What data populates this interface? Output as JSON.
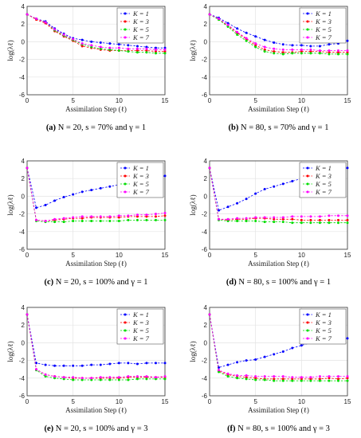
{
  "chart_data": [
    {
      "type": "line",
      "caption_tag": "(a)",
      "caption_text": "N = 20, s = 70% and γ = 1",
      "xlabel": "Assimilation Step (ℓ)",
      "ylabel": "log(λℓ)",
      "xlim": [
        0,
        15
      ],
      "ylim": [
        -6,
        4
      ],
      "xticks": [
        0,
        5,
        10,
        15
      ],
      "yticks": [
        -6,
        -4,
        -2,
        0,
        2,
        4
      ],
      "grid": true,
      "legend_position": "top-right",
      "x": [
        0,
        1,
        2,
        3,
        4,
        5,
        6,
        7,
        8,
        9,
        10,
        11,
        12,
        13,
        14,
        15
      ],
      "series": [
        {
          "name": "K = 1",
          "color": "#0000ff",
          "values": [
            3.1,
            2.6,
            2.3,
            1.5,
            0.9,
            0.4,
            0.2,
            0.0,
            -0.1,
            -0.2,
            -0.3,
            -0.4,
            -0.5,
            -0.6,
            -0.7,
            -0.7
          ]
        },
        {
          "name": "K = 3",
          "color": "#ff0000",
          "values": [
            3.1,
            2.5,
            2.1,
            1.2,
            0.6,
            0.1,
            -0.5,
            -0.7,
            -0.9,
            -1.0,
            -1.0,
            -1.0,
            -1.0,
            -1.0,
            -1.1,
            -1.1
          ]
        },
        {
          "name": "K = 5",
          "color": "#00dd00",
          "values": [
            3.1,
            2.6,
            2.2,
            1.3,
            0.7,
            0.2,
            -0.3,
            -0.6,
            -0.8,
            -0.9,
            -1.0,
            -1.1,
            -1.2,
            -1.2,
            -1.3,
            -1.3
          ]
        },
        {
          "name": "K = 7",
          "color": "#ff00ff",
          "values": [
            3.1,
            2.6,
            2.2,
            1.4,
            0.8,
            0.3,
            -0.2,
            -0.4,
            -0.6,
            -0.7,
            -0.7,
            -0.8,
            -0.8,
            -0.8,
            -0.9,
            -0.9
          ]
        }
      ]
    },
    {
      "type": "line",
      "caption_tag": "(b)",
      "caption_text": "N = 80, s = 70% and γ = 1",
      "xlabel": "Assimilation Step (ℓ)",
      "ylabel": "log(λℓ)",
      "xlim": [
        0,
        15
      ],
      "ylim": [
        -6,
        4
      ],
      "xticks": [
        0,
        5,
        10,
        15
      ],
      "yticks": [
        -6,
        -4,
        -2,
        0,
        2,
        4
      ],
      "grid": true,
      "legend_position": "top-right",
      "x": [
        0,
        1,
        2,
        3,
        4,
        5,
        6,
        7,
        8,
        9,
        10,
        11,
        12,
        13,
        14,
        15
      ],
      "series": [
        {
          "name": "K = 1",
          "color": "#0000ff",
          "values": [
            3.1,
            2.7,
            2.1,
            1.5,
            1.0,
            0.6,
            0.2,
            -0.1,
            -0.3,
            -0.4,
            -0.4,
            -0.5,
            -0.5,
            -0.3,
            -0.2,
            0.1
          ]
        },
        {
          "name": "K = 3",
          "color": "#ff0000",
          "values": [
            3.1,
            2.5,
            1.8,
            1.0,
            0.3,
            -0.4,
            -0.9,
            -1.1,
            -1.2,
            -1.2,
            -1.1,
            -1.1,
            -1.1,
            -1.2,
            -1.2,
            -1.2
          ]
        },
        {
          "name": "K = 5",
          "color": "#00dd00",
          "values": [
            3.1,
            2.5,
            1.7,
            0.8,
            0.1,
            -0.6,
            -1.1,
            -1.3,
            -1.4,
            -1.3,
            -1.3,
            -1.3,
            -1.3,
            -1.4,
            -1.4,
            -1.4
          ]
        },
        {
          "name": "K = 7",
          "color": "#ff00ff",
          "values": [
            3.1,
            2.6,
            1.9,
            1.1,
            0.4,
            -0.2,
            -0.6,
            -0.8,
            -0.9,
            -0.9,
            -0.9,
            -0.9,
            -1.0,
            -1.0,
            -1.0,
            -1.0
          ]
        }
      ]
    },
    {
      "type": "line",
      "caption_tag": "(c)",
      "caption_text": "N = 20, s = 100% and γ = 1",
      "xlabel": "Assimilation Step (ℓ)",
      "ylabel": "log(λℓ)",
      "xlim": [
        0,
        15
      ],
      "ylim": [
        -6,
        4
      ],
      "xticks": [
        0,
        5,
        10,
        15
      ],
      "yticks": [
        -6,
        -4,
        -2,
        0,
        2,
        4
      ],
      "grid": true,
      "legend_position": "top-right",
      "x": [
        0,
        1,
        2,
        3,
        4,
        5,
        6,
        7,
        8,
        9,
        10,
        11,
        12,
        13,
        14,
        15
      ],
      "series": [
        {
          "name": "K = 1",
          "color": "#0000ff",
          "values": [
            3.2,
            -1.3,
            -1.0,
            -0.5,
            -0.1,
            0.2,
            0.5,
            0.7,
            0.9,
            1.1,
            1.3,
            1.5,
            1.7,
            1.9,
            2.1,
            2.3
          ]
        },
        {
          "name": "K = 3",
          "color": "#ff0000",
          "values": [
            3.2,
            -2.7,
            -2.8,
            -2.7,
            -2.6,
            -2.5,
            -2.5,
            -2.4,
            -2.4,
            -2.4,
            -2.4,
            -2.3,
            -2.3,
            -2.3,
            -2.3,
            -2.2
          ]
        },
        {
          "name": "K = 5",
          "color": "#00dd00",
          "values": [
            3.2,
            -2.8,
            -2.9,
            -2.9,
            -2.9,
            -2.8,
            -2.8,
            -2.8,
            -2.8,
            -2.8,
            -2.8,
            -2.7,
            -2.7,
            -2.7,
            -2.7,
            -2.7
          ]
        },
        {
          "name": "K = 7",
          "color": "#ff00ff",
          "values": [
            3.2,
            -2.7,
            -2.8,
            -2.6,
            -2.5,
            -2.4,
            -2.3,
            -2.3,
            -2.3,
            -2.3,
            -2.2,
            -2.2,
            -2.1,
            -2.1,
            -2.0,
            -1.9
          ]
        }
      ]
    },
    {
      "type": "line",
      "caption_tag": "(d)",
      "caption_text": "N = 80, s = 100% and γ = 1",
      "xlabel": "Assimilation Step (ℓ)",
      "ylabel": "log(λℓ)",
      "xlim": [
        0,
        15
      ],
      "ylim": [
        -6,
        4
      ],
      "xticks": [
        0,
        5,
        10,
        15
      ],
      "yticks": [
        -6,
        -4,
        -2,
        0,
        2,
        4
      ],
      "grid": true,
      "legend_position": "top-right",
      "x": [
        0,
        1,
        2,
        3,
        4,
        5,
        6,
        7,
        8,
        9,
        10,
        11,
        12,
        13,
        14,
        15
      ],
      "series": [
        {
          "name": "K = 1",
          "color": "#0000ff",
          "values": [
            3.2,
            -1.6,
            -1.2,
            -0.8,
            -0.3,
            0.3,
            0.8,
            1.1,
            1.4,
            1.7,
            2.0,
            2.3,
            2.5,
            2.8,
            3.0,
            3.2
          ]
        },
        {
          "name": "K = 3",
          "color": "#ff0000",
          "values": [
            3.2,
            -2.6,
            -2.7,
            -2.6,
            -2.6,
            -2.5,
            -2.5,
            -2.6,
            -2.6,
            -2.6,
            -2.7,
            -2.7,
            -2.7,
            -2.7,
            -2.7,
            -2.7
          ]
        },
        {
          "name": "K = 5",
          "color": "#00dd00",
          "values": [
            3.2,
            -2.7,
            -2.8,
            -2.8,
            -2.8,
            -2.8,
            -2.9,
            -2.9,
            -2.9,
            -3.0,
            -3.0,
            -3.0,
            -3.0,
            -3.0,
            -3.0,
            -3.0
          ]
        },
        {
          "name": "K = 7",
          "color": "#ff00ff",
          "values": [
            3.2,
            -2.6,
            -2.6,
            -2.5,
            -2.5,
            -2.4,
            -2.4,
            -2.4,
            -2.4,
            -2.3,
            -2.3,
            -2.3,
            -2.3,
            -2.2,
            -2.2,
            -2.2
          ]
        }
      ]
    },
    {
      "type": "line",
      "caption_tag": "(e)",
      "caption_text": "N = 20, s = 100% and γ = 3",
      "xlabel": "Assimilation Step (ℓ)",
      "ylabel": "log(λℓ)",
      "xlim": [
        0,
        15
      ],
      "ylim": [
        -6,
        4
      ],
      "xticks": [
        0,
        5,
        10,
        15
      ],
      "yticks": [
        -6,
        -4,
        -2,
        0,
        2,
        4
      ],
      "grid": true,
      "legend_position": "top-right",
      "x": [
        0,
        1,
        2,
        3,
        4,
        5,
        6,
        7,
        8,
        9,
        10,
        11,
        12,
        13,
        14,
        15
      ],
      "series": [
        {
          "name": "K = 1",
          "color": "#0000ff",
          "values": [
            3.2,
            -2.3,
            -2.5,
            -2.6,
            -2.6,
            -2.6,
            -2.6,
            -2.5,
            -2.5,
            -2.4,
            -2.3,
            -2.3,
            -2.4,
            -2.3,
            -2.3,
            -2.3
          ]
        },
        {
          "name": "K = 3",
          "color": "#ff0000",
          "values": [
            3.2,
            -3.0,
            -3.6,
            -3.8,
            -3.9,
            -4.0,
            -4.0,
            -4.0,
            -4.0,
            -4.0,
            -4.0,
            -3.9,
            -3.9,
            -3.9,
            -3.9,
            -3.9
          ]
        },
        {
          "name": "K = 5",
          "color": "#00dd00",
          "values": [
            3.2,
            -3.1,
            -3.8,
            -4.0,
            -4.1,
            -4.2,
            -4.2,
            -4.2,
            -4.2,
            -4.2,
            -4.2,
            -4.2,
            -4.1,
            -4.1,
            -4.1,
            -4.1
          ]
        },
        {
          "name": "K = 7",
          "color": "#ff00ff",
          "values": [
            3.2,
            -3.0,
            -3.6,
            -3.8,
            -3.9,
            -3.9,
            -4.0,
            -4.0,
            -3.9,
            -3.9,
            -3.9,
            -3.8,
            -3.8,
            -3.8,
            -3.9,
            -3.8
          ]
        }
      ]
    },
    {
      "type": "line",
      "caption_tag": "(f)",
      "caption_text": "N = 80, s = 100% and γ = 3",
      "xlabel": "Assimilation Step (ℓ)",
      "ylabel": "log(λℓ)",
      "xlim": [
        0,
        15
      ],
      "ylim": [
        -6,
        4
      ],
      "xticks": [
        0,
        5,
        10,
        15
      ],
      "yticks": [
        -6,
        -4,
        -2,
        0,
        2,
        4
      ],
      "grid": true,
      "legend_position": "top-right",
      "x": [
        0,
        1,
        2,
        3,
        4,
        5,
        6,
        7,
        8,
        9,
        10,
        11,
        12,
        13,
        14,
        15
      ],
      "series": [
        {
          "name": "K = 1",
          "color": "#0000ff",
          "values": [
            3.2,
            -2.8,
            -2.5,
            -2.2,
            -2.0,
            -1.9,
            -1.6,
            -1.3,
            -1.0,
            -0.6,
            -0.3,
            0.0,
            0.2,
            0.3,
            0.4,
            0.5
          ]
        },
        {
          "name": "K = 3",
          "color": "#ff0000",
          "values": [
            3.2,
            -3.2,
            -3.6,
            -3.8,
            -3.9,
            -4.0,
            -4.1,
            -4.1,
            -4.1,
            -4.1,
            -4.1,
            -4.1,
            -4.1,
            -4.0,
            -4.1,
            -4.0
          ]
        },
        {
          "name": "K = 5",
          "color": "#00dd00",
          "values": [
            3.2,
            -3.3,
            -3.8,
            -4.0,
            -4.1,
            -4.2,
            -4.2,
            -4.3,
            -4.3,
            -4.3,
            -4.3,
            -4.3,
            -4.3,
            -4.3,
            -4.3,
            -4.3
          ]
        },
        {
          "name": "K = 7",
          "color": "#ff00ff",
          "values": [
            3.2,
            -3.1,
            -3.5,
            -3.7,
            -3.7,
            -3.8,
            -3.8,
            -3.8,
            -3.8,
            -3.9,
            -3.9,
            -3.9,
            -3.8,
            -3.8,
            -3.8,
            -3.8
          ]
        }
      ]
    }
  ]
}
